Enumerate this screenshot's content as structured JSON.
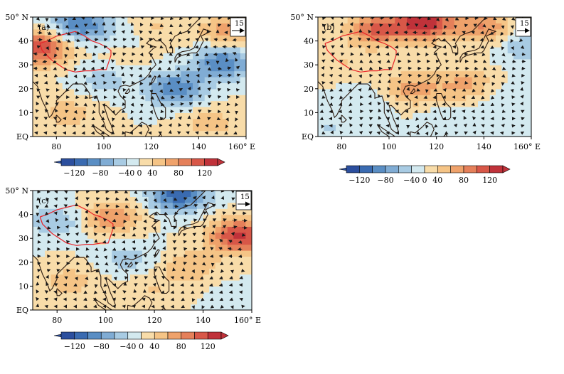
{
  "colors": {
    "neg120": "#2c4f9e",
    "neg100": "#3a6bb1",
    "neg80": "#5a8ec4",
    "neg60": "#80acd4",
    "neg40": "#a8cbe3",
    "neg20": "#d3e9ef",
    "pos20": "#f8dca9",
    "pos40": "#f5c486",
    "pos60": "#efa26b",
    "pos80": "#e5805a",
    "pos100": "#d85748",
    "pos120": "#c0323a",
    "coast": "#2b1a10",
    "plateau": "#e8242a",
    "arrow": "#1a1a1a"
  },
  "chart_data": [
    {
      "type": "heatmap",
      "panel_label": "(a)",
      "x_ticks": [
        "80",
        "100",
        "120",
        "140",
        "160° E"
      ],
      "y_ticks": [
        "50° N",
        "40",
        "30",
        "20",
        "10",
        "EQ"
      ],
      "xlim": [
        70,
        160
      ],
      "ylim": [
        0,
        50
      ],
      "reference_vector": {
        "value": "15"
      },
      "colorbar": {
        "levels": [
          -120,
          -100,
          -80,
          -60,
          -40,
          -20,
          0,
          20,
          40,
          60,
          80,
          100,
          120
        ],
        "tick_labels": [
          "−120",
          "−80",
          "−40",
          "0",
          "40",
          "80",
          "120"
        ]
      },
      "anomaly_centers": [
        {
          "lon": 73,
          "lat": 37,
          "value": 100
        },
        {
          "lon": 90,
          "lat": 47,
          "value": -80
        },
        {
          "lon": 112,
          "lat": 42,
          "value": -40
        },
        {
          "lon": 118,
          "lat": 45,
          "value": 40
        },
        {
          "lon": 152,
          "lat": 44,
          "value": 50
        },
        {
          "lon": 150,
          "lat": 31,
          "value": -80
        },
        {
          "lon": 130,
          "lat": 20,
          "value": -80
        },
        {
          "lon": 100,
          "lat": 24,
          "value": -30
        },
        {
          "lon": 85,
          "lat": 10,
          "value": 30
        },
        {
          "lon": 145,
          "lat": 6,
          "value": 30
        },
        {
          "lon": 110,
          "lat": 36,
          "value": 20
        }
      ]
    },
    {
      "type": "heatmap",
      "panel_label": "(b)",
      "x_ticks": [
        "80",
        "100",
        "120",
        "140",
        "160° E"
      ],
      "y_ticks": [
        "50° N",
        "40",
        "30",
        "20",
        "10",
        "EQ"
      ],
      "xlim": [
        70,
        160
      ],
      "ylim": [
        0,
        50
      ],
      "reference_vector": {
        "value": "15"
      },
      "colorbar": {
        "levels": [
          -120,
          -100,
          -80,
          -60,
          -40,
          -20,
          0,
          20,
          40,
          60,
          80,
          100,
          120
        ],
        "tick_labels": [
          "−120",
          "−80",
          "−40",
          "0",
          "40",
          "80",
          "120"
        ]
      },
      "anomaly_centers": [
        {
          "lon": 115,
          "lat": 48,
          "value": 120
        },
        {
          "lon": 95,
          "lat": 45,
          "value": 80
        },
        {
          "lon": 140,
          "lat": 46,
          "value": 60
        },
        {
          "lon": 158,
          "lat": 38,
          "value": -40
        },
        {
          "lon": 80,
          "lat": 31,
          "value": 20
        },
        {
          "lon": 110,
          "lat": 20,
          "value": 50
        },
        {
          "lon": 132,
          "lat": 22,
          "value": 45
        },
        {
          "lon": 90,
          "lat": 15,
          "value": -20
        },
        {
          "lon": 125,
          "lat": 6,
          "value": -20
        },
        {
          "lon": 150,
          "lat": 15,
          "value": -20
        },
        {
          "lon": 75,
          "lat": 4,
          "value": -20
        }
      ]
    },
    {
      "type": "heatmap",
      "panel_label": "(c)",
      "x_ticks": [
        "80",
        "100",
        "120",
        "140",
        "160° E"
      ],
      "y_ticks": [
        "50° N",
        "40",
        "30",
        "20",
        "10",
        "EQ"
      ],
      "xlim": [
        70,
        160
      ],
      "ylim": [
        0,
        50
      ],
      "reference_vector": {
        "value": "15"
      },
      "colorbar": {
        "levels": [
          -120,
          -100,
          -80,
          -60,
          -40,
          -20,
          0,
          20,
          40,
          60,
          80,
          100,
          120
        ],
        "tick_labels": [
          "−120",
          "−80",
          "−40",
          "0",
          "40",
          "80",
          "120"
        ]
      },
      "anomaly_centers": [
        {
          "lon": 130,
          "lat": 48,
          "value": -90
        },
        {
          "lon": 80,
          "lat": 37,
          "value": -40
        },
        {
          "lon": 102,
          "lat": 39,
          "value": 60
        },
        {
          "lon": 155,
          "lat": 31,
          "value": 110
        },
        {
          "lon": 110,
          "lat": 22,
          "value": -30
        },
        {
          "lon": 134,
          "lat": 18,
          "value": 40
        },
        {
          "lon": 85,
          "lat": 12,
          "value": 30
        },
        {
          "lon": 155,
          "lat": 3,
          "value": -20
        },
        {
          "lon": 118,
          "lat": 8,
          "value": 20
        }
      ]
    }
  ]
}
